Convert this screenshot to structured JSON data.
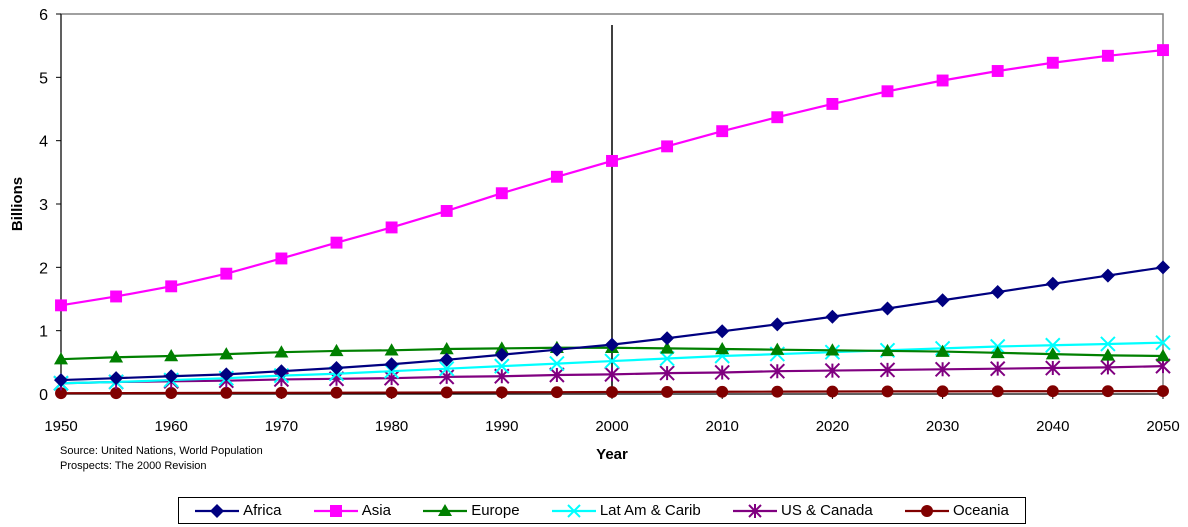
{
  "chart_data": {
    "type": "line",
    "xlabel": "Year",
    "ylabel": "Billions",
    "xlim": [
      1950,
      2050
    ],
    "ylim": [
      0,
      6
    ],
    "x_ticks": [
      1950,
      1960,
      1970,
      1980,
      1990,
      2000,
      2010,
      2020,
      2030,
      2040,
      2050
    ],
    "y_ticks": [
      0,
      1,
      2,
      3,
      4,
      5,
      6
    ],
    "x": [
      1950,
      1955,
      1960,
      1965,
      1970,
      1975,
      1980,
      1985,
      1990,
      1995,
      2000,
      2005,
      2010,
      2015,
      2020,
      2025,
      2030,
      2035,
      2040,
      2045,
      2050
    ],
    "vertical_marker_x": 2000,
    "grid": false,
    "legend_position": "bottom",
    "series": [
      {
        "name": "Africa",
        "color": "#000080",
        "marker": "diamond",
        "values": [
          0.22,
          0.25,
          0.28,
          0.31,
          0.36,
          0.41,
          0.47,
          0.54,
          0.62,
          0.7,
          0.78,
          0.88,
          0.99,
          1.1,
          1.22,
          1.35,
          1.48,
          1.61,
          1.74,
          1.87,
          2.0
        ]
      },
      {
        "name": "Asia",
        "color": "#FF00FF",
        "marker": "square",
        "values": [
          1.4,
          1.54,
          1.7,
          1.9,
          2.14,
          2.39,
          2.63,
          2.89,
          3.17,
          3.43,
          3.68,
          3.91,
          4.15,
          4.37,
          4.58,
          4.78,
          4.95,
          5.1,
          5.23,
          5.34,
          5.43
        ]
      },
      {
        "name": "Europe",
        "color": "#008000",
        "marker": "triangle",
        "values": [
          0.55,
          0.58,
          0.6,
          0.63,
          0.66,
          0.68,
          0.69,
          0.71,
          0.72,
          0.73,
          0.73,
          0.72,
          0.71,
          0.7,
          0.69,
          0.68,
          0.67,
          0.65,
          0.63,
          0.61,
          0.6
        ]
      },
      {
        "name": "Lat Am & Carib",
        "color": "#00FFFF",
        "marker": "x",
        "values": [
          0.17,
          0.19,
          0.22,
          0.25,
          0.29,
          0.32,
          0.36,
          0.4,
          0.44,
          0.48,
          0.52,
          0.56,
          0.6,
          0.63,
          0.66,
          0.69,
          0.72,
          0.75,
          0.77,
          0.79,
          0.81
        ]
      },
      {
        "name": "US & Canada",
        "color": "#800080",
        "marker": "asterisk",
        "values": [
          0.17,
          0.19,
          0.2,
          0.21,
          0.23,
          0.24,
          0.25,
          0.27,
          0.28,
          0.3,
          0.31,
          0.33,
          0.34,
          0.36,
          0.37,
          0.38,
          0.39,
          0.4,
          0.41,
          0.42,
          0.44
        ]
      },
      {
        "name": "Oceania",
        "color": "#800000",
        "marker": "circle",
        "values": [
          0.013,
          0.014,
          0.016,
          0.018,
          0.019,
          0.021,
          0.023,
          0.025,
          0.027,
          0.029,
          0.031,
          0.033,
          0.035,
          0.037,
          0.039,
          0.041,
          0.042,
          0.043,
          0.044,
          0.045,
          0.046
        ]
      }
    ]
  },
  "source_note": {
    "line1": "Source: United Nations, World Population",
    "line2": "Prospects: The 2000 Revision"
  }
}
